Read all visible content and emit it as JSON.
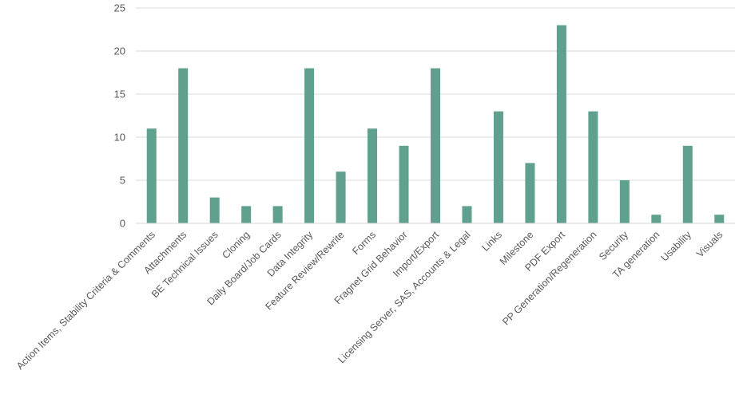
{
  "chart_data": {
    "type": "bar",
    "title": "",
    "xlabel": "",
    "ylabel": "",
    "categories": [
      "Action Items, Stability Criteria & Comments",
      "Attachments",
      "BE Technical Issues",
      "Cloning",
      "Daily Board/Job Cards",
      "Data Integrity",
      "Feature Review/Rewrite",
      "Forms",
      "Fragnet Grid Behavior",
      "Import/Export",
      "Licensing Server, SAS, Accounts & Legal",
      "Links",
      "Milestone",
      "PDF Export",
      "PP Generation/Regeneration",
      "Security",
      "TA generation",
      "Usability",
      "Visuals"
    ],
    "values": [
      11,
      18,
      3,
      2,
      2,
      18,
      6,
      11,
      9,
      18,
      2,
      13,
      7,
      23,
      13,
      5,
      1,
      9,
      1
    ],
    "ylim": [
      0,
      25
    ],
    "yticks": [
      0,
      5,
      10,
      15,
      20,
      25
    ],
    "grid": true,
    "legend": "none",
    "bar_color": "#5fa08e"
  }
}
